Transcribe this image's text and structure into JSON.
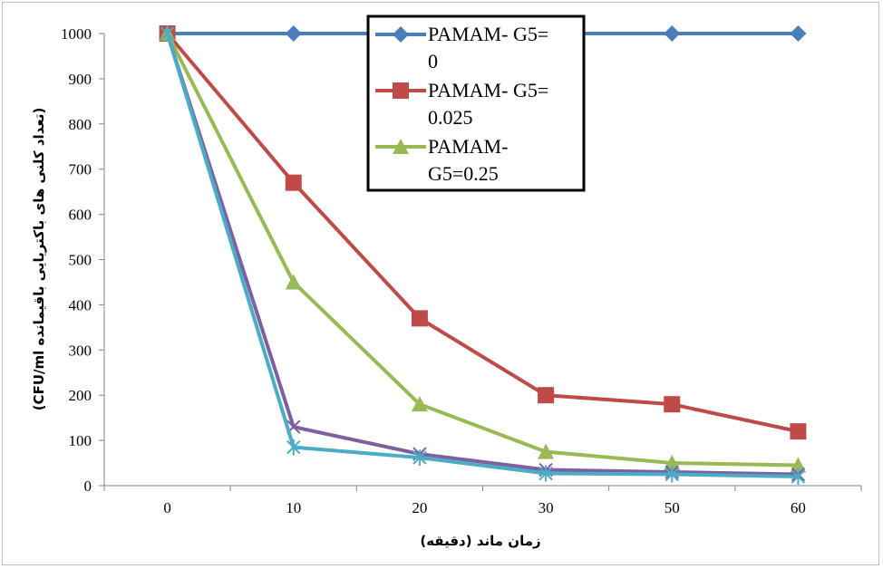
{
  "chart_data": {
    "type": "line",
    "categories": [
      "0",
      "10",
      "20",
      "30",
      "50",
      "60"
    ],
    "ylim": [
      0,
      1000
    ],
    "yticks": [
      0,
      100,
      200,
      300,
      400,
      500,
      600,
      700,
      800,
      900,
      1000
    ],
    "xlabel": "زمان ماند (دقیقه)",
    "ylabel": "(تعداد کلنی های باکتریایی باقیمانده CFU/ml)",
    "legend_position": "top-center",
    "grid": false,
    "series": [
      {
        "name": "PAMAM- G5= 0",
        "legend_lines": [
          "PAMAM- G5=",
          "0"
        ],
        "color": "#4a7ebb",
        "marker": "diamond",
        "values": [
          1000,
          1000,
          1000,
          1000,
          1000,
          1000
        ]
      },
      {
        "name": "PAMAM- G5= 0.025",
        "legend_lines": [
          "PAMAM- G5=",
          "0.025"
        ],
        "color": "#be4b48",
        "marker": "square",
        "values": [
          1000,
          670,
          370,
          200,
          180,
          120
        ]
      },
      {
        "name": "PAMAM- G5=0.25",
        "legend_lines": [
          "PAMAM-",
          "G5=0.25"
        ],
        "color": "#98b954",
        "marker": "triangle",
        "values": [
          1000,
          450,
          180,
          75,
          50,
          45
        ]
      },
      {
        "color": "#7d60a0",
        "marker": "x",
        "values": [
          1000,
          130,
          70,
          35,
          30,
          25
        ]
      },
      {
        "color": "#4bacc6",
        "marker": "star",
        "values": [
          1000,
          85,
          62,
          27,
          25,
          20
        ]
      }
    ]
  }
}
